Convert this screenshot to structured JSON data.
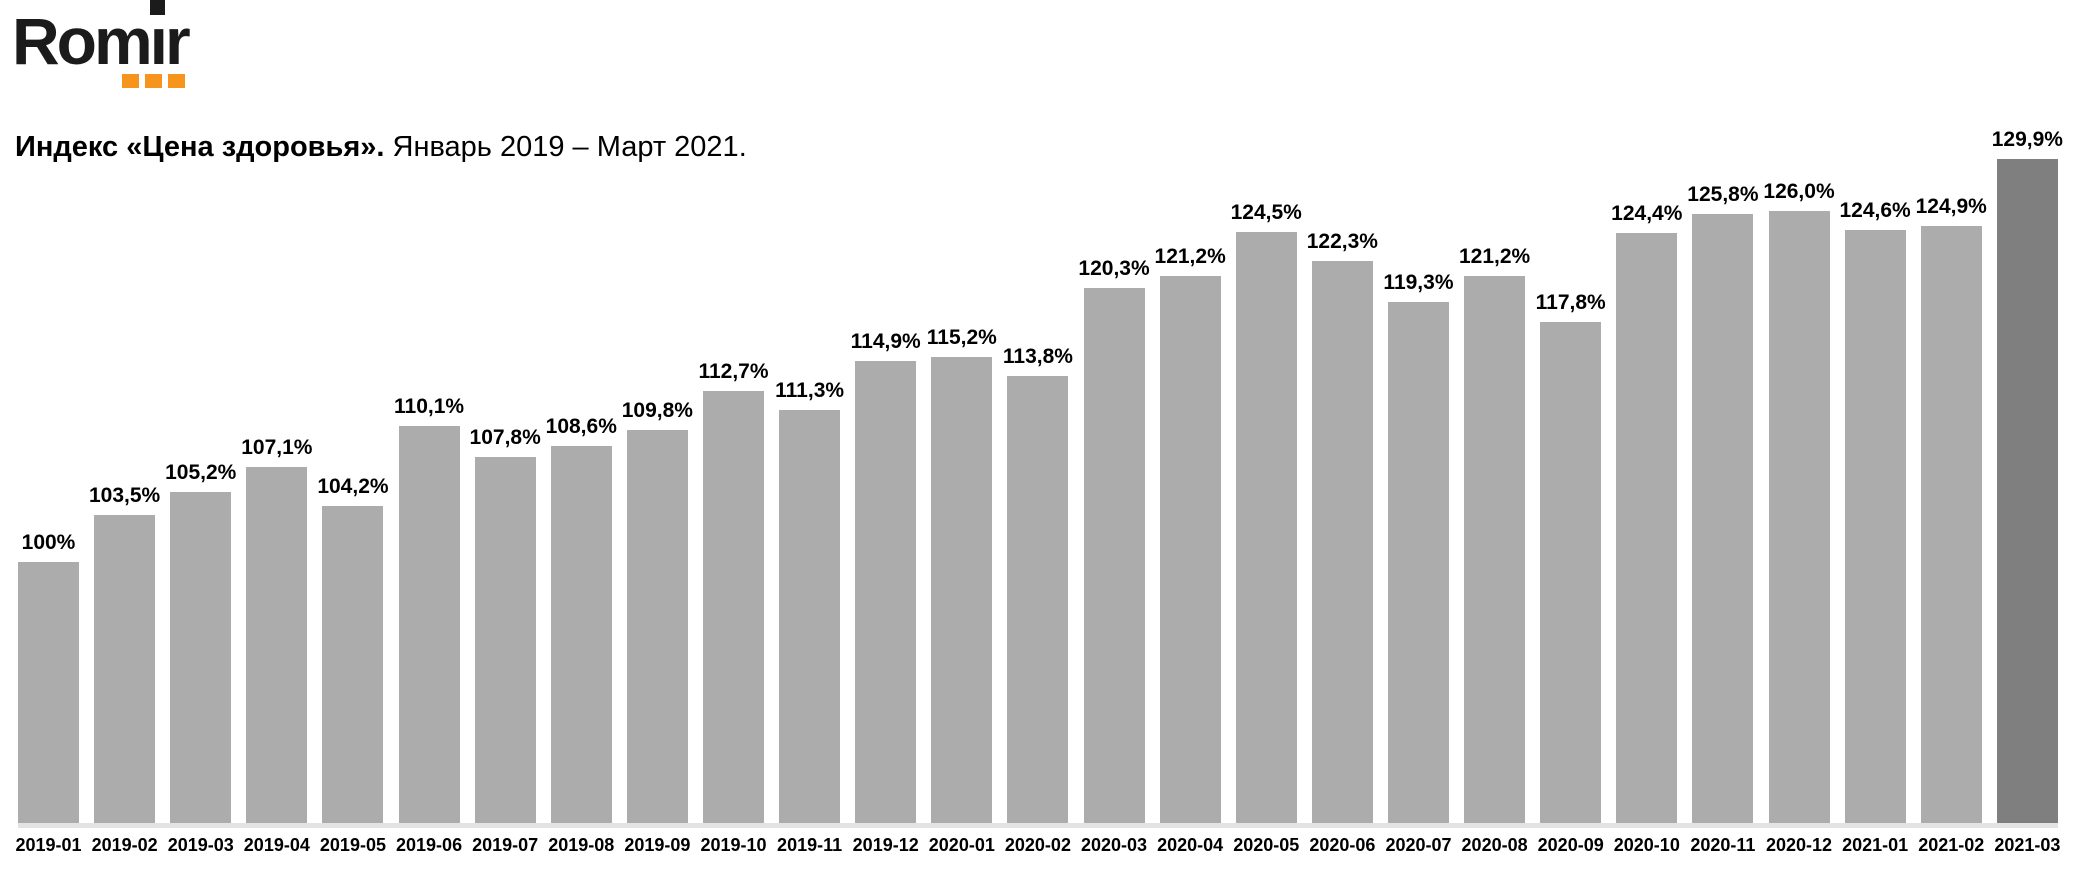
{
  "logo": {
    "text_part1": "Rom",
    "text_i": "ı",
    "text_part2": "r",
    "text_color": "#1b1b1b",
    "dots_color": "#F7941E"
  },
  "header": {
    "title_bold": "Индекс «Цена здоровья».",
    "title_period": "Январь 2019 – Март 2021."
  },
  "chart_data": {
    "type": "bar",
    "title": "Индекс «Цена здоровья». Январь 2019 – Март 2021.",
    "categories": [
      "2019-01",
      "2019-02",
      "2019-03",
      "2019-04",
      "2019-05",
      "2019-06",
      "2019-07",
      "2019-08",
      "2019-09",
      "2019-10",
      "2019-11",
      "2019-12",
      "2020-01",
      "2020-02",
      "2020-03",
      "2020-04",
      "2020-05",
      "2020-06",
      "2020-07",
      "2020-08",
      "2020-09",
      "2020-10",
      "2020-11",
      "2020-12",
      "2021-01",
      "2021-02",
      "2021-03"
    ],
    "values": [
      100,
      103.5,
      105.2,
      107.1,
      104.2,
      110.1,
      107.8,
      108.6,
      109.8,
      112.7,
      111.3,
      114.9,
      115.2,
      113.8,
      120.3,
      121.2,
      124.5,
      122.3,
      119.3,
      121.2,
      117.8,
      124.4,
      125.8,
      126.0,
      124.6,
      124.9,
      129.9
    ],
    "value_labels": [
      "100%",
      "103,5%",
      "105,2%",
      "107,1%",
      "104,2%",
      "110,1%",
      "107,8%",
      "108,6%",
      "109,8%",
      "112,7%",
      "111,3%",
      "114,9%",
      "115,2%",
      "113,8%",
      "120,3%",
      "121,2%",
      "124,5%",
      "122,3%",
      "119,3%",
      "121,2%",
      "117,8%",
      "124,4%",
      "125,8%",
      "126,0%",
      "124,6%",
      "124,9%",
      "129,9%"
    ],
    "highlight_index": 26,
    "bar_color": "#ACACAC",
    "highlight_bar_color": "#7F7F7F",
    "baseline_color": "#E3E3E3",
    "label_color": "#000000",
    "axis": {
      "y_axis_visible": false,
      "gridlines": false,
      "y_min_implied": 80.7,
      "y_max_shown": 129.9,
      "value_label_position": "above-bar",
      "legend": "none"
    }
  }
}
